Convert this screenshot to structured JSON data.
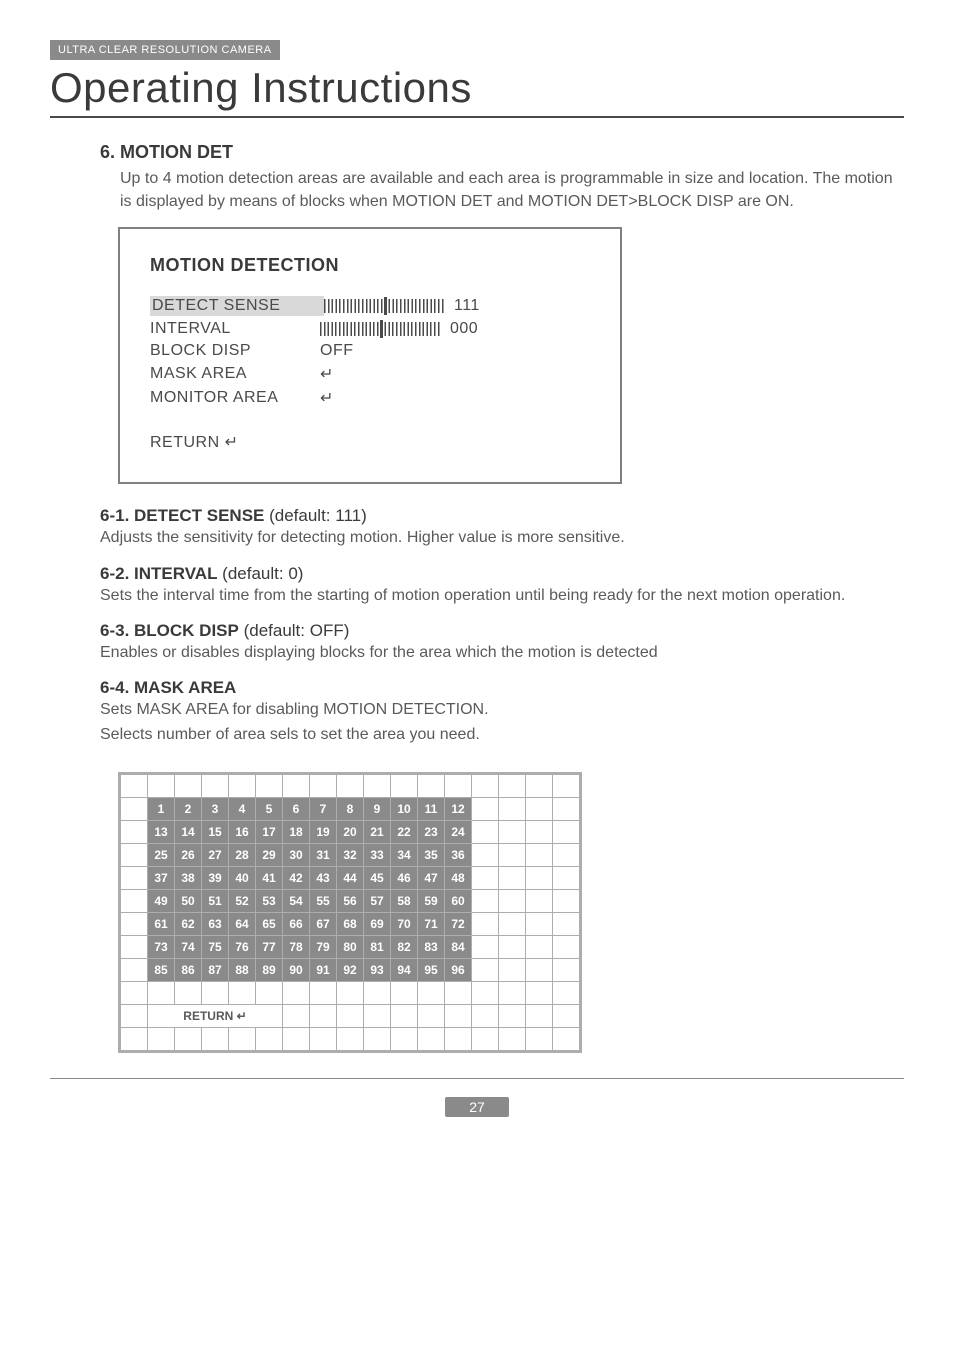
{
  "header": {
    "tag": "ULTRA CLEAR RESOLUTION CAMERA",
    "title": "Operating Instructions"
  },
  "section6": {
    "heading": "6. MOTION DET",
    "body": "Up to 4 motion detection areas are available and each area is programmable in size and location. The motion is displayed by means of blocks when MOTION DET and MOTION DET>BLOCK DISP are ON."
  },
  "menu": {
    "title": "MOTION DETECTION",
    "rows": [
      {
        "label": "DETECT SENSE",
        "highlight": true,
        "type": "slider",
        "value": "111"
      },
      {
        "label": "INTERVAL",
        "highlight": false,
        "type": "slider",
        "value": "000"
      },
      {
        "label": "BLOCK DISP",
        "highlight": false,
        "type": "text",
        "value": "OFF"
      },
      {
        "label": "MASK AREA",
        "highlight": false,
        "type": "text",
        "value": "↵"
      },
      {
        "label": "MONITOR AREA",
        "highlight": false,
        "type": "text",
        "value": "↵"
      }
    ],
    "return": "RETURN ↵"
  },
  "sub61": {
    "heading": "6-1. DETECT SENSE",
    "default": " (default: 111)",
    "body": "Adjusts the sensitivity for detecting motion. Higher value is more sensitive."
  },
  "sub62": {
    "heading": "6-2. INTERVAL",
    "default": " (default: 0)",
    "body": "Sets the interval time from the starting of motion operation until being ready for the next motion operation."
  },
  "sub63": {
    "heading": "6-3. BLOCK DISP",
    "default": " (default: OFF)",
    "body": "Enables or disables displaying blocks for the area which the motion is detected"
  },
  "sub64": {
    "heading": "6-4. MASK AREA",
    "body1": "Sets MASK AREA for disabling MOTION DETECTION.",
    "body2": "Selects number of area sels to set the area you need."
  },
  "grid": {
    "rows": 8,
    "cols": 12,
    "total_cols": 17,
    "total_rows": 12,
    "return": "RETURN ↵"
  },
  "page_number": "27",
  "colors": {
    "tag_bg": "#8a8a8a",
    "grid_cell_bg": "#8a8a8a",
    "border": "#adadad",
    "text": "#4a4a4a"
  }
}
